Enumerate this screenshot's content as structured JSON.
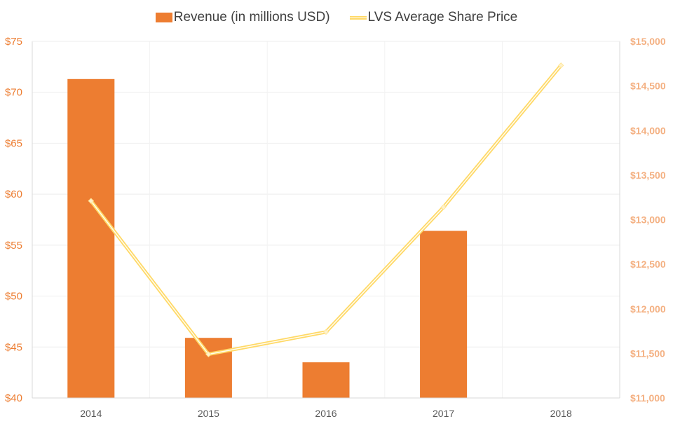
{
  "chart_data": {
    "type": "bar+line",
    "title": "",
    "categories": [
      "2014",
      "2015",
      "2016",
      "2017",
      "2018"
    ],
    "series": [
      {
        "name": "Revenue (in millions USD)",
        "type": "bar",
        "axis": "left",
        "color": "#ED7D31",
        "values": [
          71.3,
          45.9,
          43.5,
          56.4,
          null
        ]
      },
      {
        "name": "LVS Average Share Price",
        "type": "line",
        "axis": "right",
        "color": "#FFD966",
        "values": [
          13210,
          11490,
          11740,
          13140,
          14730
        ]
      }
    ],
    "left_axis": {
      "ylim": [
        40,
        75
      ],
      "ticks": [
        40,
        45,
        50,
        55,
        60,
        65,
        70,
        75
      ],
      "tick_labels": [
        "$40",
        "$45",
        "$50",
        "$55",
        "$60",
        "$65",
        "$70",
        "$75"
      ],
      "color": "#ED7D31"
    },
    "right_axis": {
      "ylim": [
        11000,
        15000
      ],
      "ticks": [
        11000,
        11500,
        12000,
        12500,
        13000,
        13500,
        14000,
        14500,
        15000
      ],
      "tick_labels": [
        "$11,000",
        "$11,500",
        "$12,000",
        "$12,500",
        "$13,000",
        "$13,500",
        "$14,000",
        "$14,500",
        "$15,000"
      ],
      "color": "#F4B183"
    },
    "grid": true,
    "legend": "top"
  }
}
